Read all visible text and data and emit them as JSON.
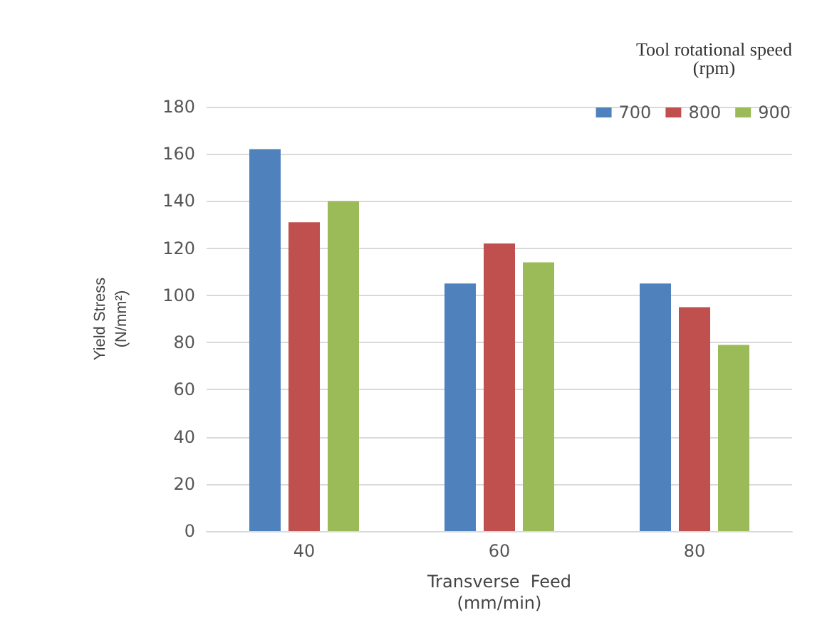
{
  "chart_data": {
    "type": "bar",
    "xlabel": "Transverse  Feed\n(mm/min)",
    "ylabel": "Yield Stress\n(N/mm²)",
    "legend_title": "Tool rotational speed\n(rpm)",
    "categories": [
      "40",
      "60",
      "80"
    ],
    "series": [
      {
        "name": "700",
        "color": "#4f81bd",
        "values": [
          162,
          105,
          105
        ]
      },
      {
        "name": "800",
        "color": "#c0504d",
        "values": [
          131,
          122,
          95
        ]
      },
      {
        "name": "900",
        "color": "#9bbb59",
        "values": [
          140,
          114,
          79
        ]
      }
    ],
    "ylim": [
      0,
      180
    ],
    "yticks": [
      0,
      20,
      40,
      60,
      80,
      100,
      120,
      140,
      160,
      180
    ],
    "grid": "y",
    "legend": "top right"
  }
}
